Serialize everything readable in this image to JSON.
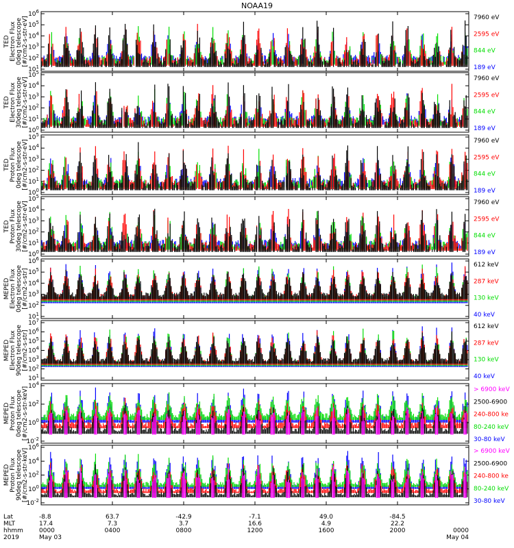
{
  "chart_data": {
    "type": "line",
    "title": "NOAA19",
    "x_tick_labels": [
      "0000",
      "0400",
      "0800",
      "1200",
      "1600",
      "2000",
      "0000"
    ],
    "x_range_hours": [
      0,
      24
    ],
    "ephemeris": {
      "row_labels": [
        "Lat",
        "MLT",
        "hhmm",
        "2019"
      ],
      "lat": [
        "-8.8",
        "63.7",
        "-42.9",
        "-7.1",
        "49.0",
        "-84.5",
        ""
      ],
      "mlt": [
        "17.4",
        "7.3",
        "3.7",
        "16.6",
        "4.9",
        "22.2",
        ""
      ],
      "hhmm": [
        "0000",
        "0400",
        "0800",
        "1200",
        "1600",
        "2000",
        "0000"
      ],
      "date_start": "May 03",
      "date_end": "May 04"
    },
    "panels": [
      {
        "instrument": "TED",
        "ylabel": [
          "TED",
          "Electron Flux",
          "0deg telescope",
          "[#/cm2-s-str-eV]"
        ],
        "log_scale": true,
        "y_exponents": [
          1,
          2,
          3,
          4,
          5,
          6
        ],
        "y_ticks_shown": [
          "10^1",
          "10^2",
          "10^3",
          "10^4",
          "10^5",
          "10^6"
        ],
        "series": [
          {
            "name": "7960 eV",
            "color": "#000000"
          },
          {
            "name": "2595 eV",
            "color": "#ff0000"
          },
          {
            "name": "844 eV",
            "color": "#00dd00"
          },
          {
            "name": "189 eV",
            "color": "#0000ff"
          }
        ]
      },
      {
        "instrument": "TED",
        "ylabel": [
          "TED",
          "Electron Flux",
          "30deg telescope",
          "[#/cm2-s-str-eV]"
        ],
        "log_scale": true,
        "y_exponents": [
          0,
          1,
          2,
          3,
          4,
          5
        ],
        "y_ticks_shown": [
          "10^0",
          "10^1",
          "10^2",
          "10^3",
          "10^4",
          "10^5"
        ],
        "series": [
          {
            "name": "7960 eV",
            "color": "#000000"
          },
          {
            "name": "2595 eV",
            "color": "#ff0000"
          },
          {
            "name": "844 eV",
            "color": "#00dd00"
          },
          {
            "name": "189 eV",
            "color": "#0000ff"
          }
        ]
      },
      {
        "instrument": "TED",
        "ylabel": [
          "TED",
          "Proton Flux",
          "0deg telescope",
          "[#/cm2-s-str-eV]"
        ],
        "log_scale": true,
        "y_exponents": [
          0,
          1,
          2,
          3,
          4,
          5
        ],
        "y_ticks_shown": [
          "10^0",
          "10^1",
          "10^2",
          "10^3",
          "10^4",
          "10^5"
        ],
        "series": [
          {
            "name": "7960 eV",
            "color": "#000000"
          },
          {
            "name": "2595 eV",
            "color": "#ff0000"
          },
          {
            "name": "844 eV",
            "color": "#00dd00"
          },
          {
            "name": "189 eV",
            "color": "#0000ff"
          }
        ]
      },
      {
        "instrument": "TED",
        "ylabel": [
          "TED",
          "Proton Flux",
          "30deg telescope",
          "[#/cm2-s-str-eV]"
        ],
        "log_scale": true,
        "y_exponents": [
          0,
          1,
          2,
          3,
          4,
          5
        ],
        "y_ticks_shown": [
          "10^0",
          "10^1",
          "10^2",
          "10^3",
          "10^4",
          "10^5"
        ],
        "series": [
          {
            "name": "7960 eV",
            "color": "#000000"
          },
          {
            "name": "2595 eV",
            "color": "#ff0000"
          },
          {
            "name": "844 eV",
            "color": "#00dd00"
          },
          {
            "name": "189 eV",
            "color": "#0000ff"
          }
        ]
      },
      {
        "instrument": "MEPED",
        "ylabel": [
          "MEPED",
          "Electron Flux",
          "0deg telescope",
          "[#/cm2-s-str]"
        ],
        "log_scale": true,
        "y_exponents": [
          1,
          2,
          3,
          4,
          5,
          6
        ],
        "y_ticks_shown": [
          "10^1",
          "10^2",
          "10^3",
          "10^4",
          "10^5",
          "10^6"
        ],
        "series": [
          {
            "name": "612 keV",
            "color": "#000000"
          },
          {
            "name": "287 keV",
            "color": "#ff0000"
          },
          {
            "name": "130 keV",
            "color": "#00dd00"
          },
          {
            "name": "40 keV",
            "color": "#0000ff"
          }
        ]
      },
      {
        "instrument": "MEPED",
        "ylabel": [
          "MEPED",
          "Electron Flux",
          "90deg telescope",
          "[#/cm2-s-str]"
        ],
        "log_scale": true,
        "y_exponents": [
          1,
          2,
          3,
          4,
          5,
          6,
          7
        ],
        "y_ticks_shown": [
          "10^1",
          "10^2",
          "10^3",
          "10^4",
          "10^5",
          "10^6",
          "10^7"
        ],
        "series": [
          {
            "name": "612 keV",
            "color": "#000000"
          },
          {
            "name": "287 keV",
            "color": "#ff0000"
          },
          {
            "name": "130 keV",
            "color": "#00dd00"
          },
          {
            "name": "40 keV",
            "color": "#0000ff"
          }
        ]
      },
      {
        "instrument": "MEPED",
        "ylabel": [
          "MEPED",
          "Proton Flux",
          "0deg telescope",
          "[#/cm2-s-str-keV]"
        ],
        "log_scale": true,
        "y_exponents": [
          -2,
          0,
          2,
          4
        ],
        "y_ticks_shown": [
          "10^-2",
          "10^0",
          "10^2",
          "10^4"
        ],
        "series": [
          {
            "name": "> 6900 keV",
            "color": "#ff00ff"
          },
          {
            "name": "2500-6900",
            "color": "#000000"
          },
          {
            "name": "240-800 ke",
            "color": "#ff0000"
          },
          {
            "name": "80-240 keV",
            "color": "#00dd00"
          },
          {
            "name": "30-80 keV",
            "color": "#0000ff"
          }
        ]
      },
      {
        "instrument": "MEPED",
        "ylabel": [
          "MEPED",
          "Proton Flux",
          "90deg telescope",
          "[#/cm2-s-str-keV]"
        ],
        "log_scale": true,
        "y_exponents": [
          -2,
          0,
          2,
          4,
          6
        ],
        "y_ticks_shown": [
          "10^-2",
          "10^0",
          "10^2",
          "10^4",
          "10^6"
        ],
        "series": [
          {
            "name": "> 6900 keV",
            "color": "#ff00ff"
          },
          {
            "name": "2500-6900",
            "color": "#000000"
          },
          {
            "name": "240-800 ke",
            "color": "#ff0000"
          },
          {
            "name": "80-240 keV",
            "color": "#00dd00"
          },
          {
            "name": "30-80 keV",
            "color": "#0000ff"
          }
        ]
      }
    ]
  }
}
